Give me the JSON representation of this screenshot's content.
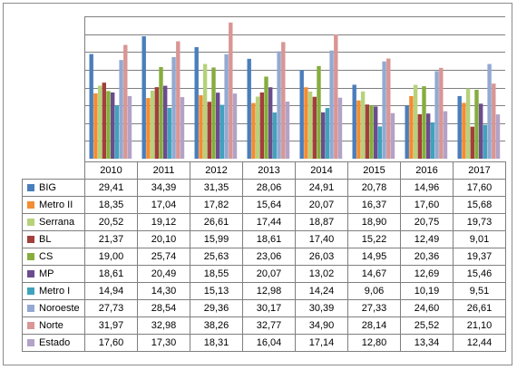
{
  "chart_data": {
    "type": "bar",
    "categories": [
      "2010",
      "2011",
      "2012",
      "2013",
      "2014",
      "2015",
      "2016",
      "2017"
    ],
    "ylim": [
      0,
      40
    ],
    "grid": true,
    "legend": "data-table-below",
    "series": [
      {
        "name": "BIG",
        "color": "#4a7ebb",
        "values": [
          29.41,
          34.39,
          31.35,
          28.06,
          24.91,
          20.78,
          14.96,
          17.6
        ]
      },
      {
        "name": "Metro II",
        "color": "#f38c33",
        "values": [
          18.35,
          17.04,
          17.82,
          15.64,
          20.07,
          16.37,
          17.6,
          15.68
        ]
      },
      {
        "name": "Serrana",
        "color": "#b6d27a",
        "values": [
          20.52,
          19.12,
          26.61,
          17.44,
          18.87,
          18.9,
          20.75,
          19.73
        ]
      },
      {
        "name": "BL",
        "color": "#a33f3b",
        "values": [
          21.37,
          20.1,
          15.99,
          18.61,
          17.4,
          15.22,
          12.49,
          9.01
        ]
      },
      {
        "name": "CS",
        "color": "#86ad3d",
        "values": [
          19.0,
          25.74,
          25.63,
          23.06,
          26.03,
          14.95,
          20.36,
          19.37
        ]
      },
      {
        "name": "MP",
        "color": "#6b4c8e",
        "values": [
          18.61,
          20.49,
          18.55,
          20.07,
          13.02,
          14.67,
          12.69,
          15.46
        ]
      },
      {
        "name": "Metro I",
        "color": "#3fa3bd",
        "values": [
          14.94,
          14.3,
          15.13,
          12.98,
          14.24,
          9.06,
          10.19,
          9.51
        ]
      },
      {
        "name": "Noroeste",
        "color": "#93a9d1",
        "values": [
          27.73,
          28.54,
          29.36,
          30.17,
          30.39,
          27.33,
          24.6,
          26.61
        ]
      },
      {
        "name": "Norte",
        "color": "#d99694",
        "values": [
          31.97,
          32.98,
          38.26,
          32.77,
          34.9,
          28.14,
          25.52,
          21.1
        ]
      },
      {
        "name": "Estado",
        "color": "#b2a2c7",
        "values": [
          17.6,
          17.3,
          18.31,
          16.04,
          17.14,
          12.8,
          13.34,
          12.44
        ]
      }
    ]
  }
}
